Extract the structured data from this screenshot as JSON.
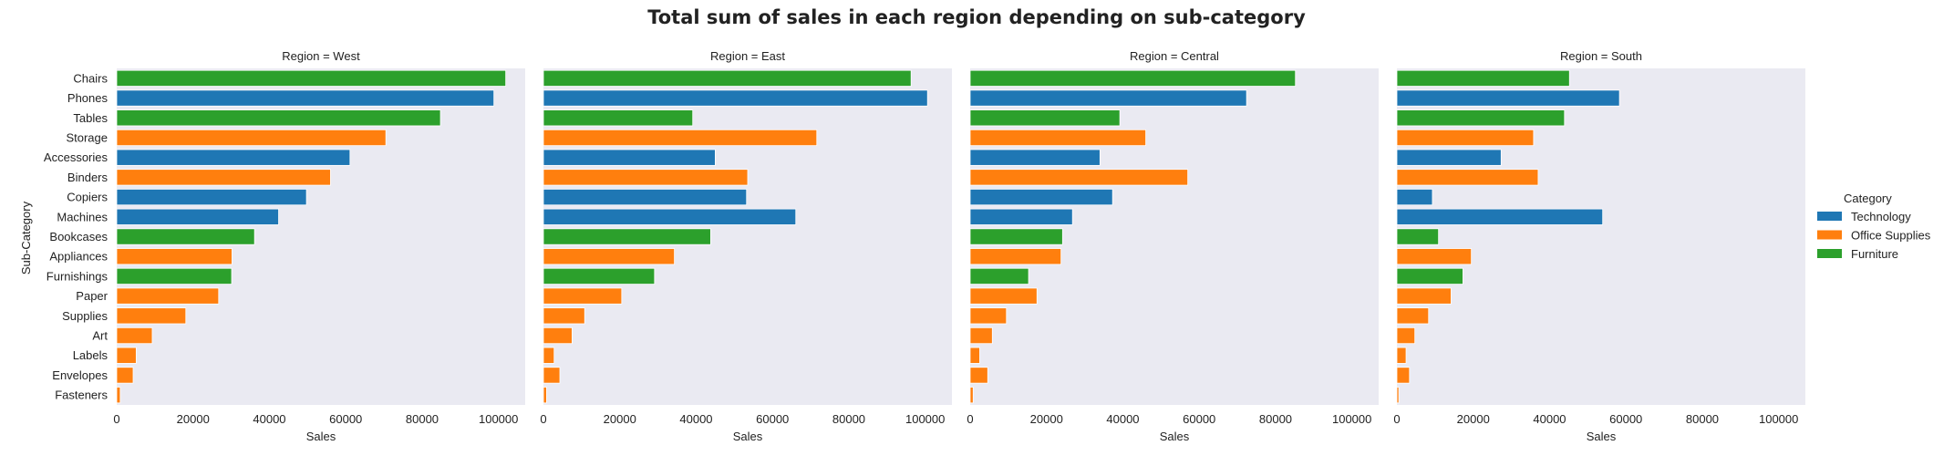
{
  "chart_data": {
    "type": "bar",
    "orientation": "horizontal",
    "title": "Total sum of sales in each region depending on sub-category",
    "xlabel": "Sales",
    "ylabel": "Sub-Category",
    "xlim": [
      0,
      107000
    ],
    "xticks": [
      "0",
      "20000",
      "40000",
      "60000",
      "80000",
      "100000"
    ],
    "xtick_values": [
      0,
      20000,
      40000,
      60000,
      80000,
      100000
    ],
    "grid": false,
    "legend_position": "right",
    "legend": {
      "title": "Category",
      "items": [
        {
          "label": "Technology",
          "color": "#1f77b4"
        },
        {
          "label": "Office Supplies",
          "color": "#ff7f0e"
        },
        {
          "label": "Furniture",
          "color": "#2ca02c"
        }
      ]
    },
    "colors": {
      "Technology": "#1f77b4",
      "Office Supplies": "#ff7f0e",
      "Furniture": "#2ca02c"
    },
    "categories": [
      "Chairs",
      "Phones",
      "Tables",
      "Storage",
      "Accessories",
      "Binders",
      "Copiers",
      "Machines",
      "Bookcases",
      "Appliances",
      "Furnishings",
      "Paper",
      "Supplies",
      "Art",
      "Labels",
      "Envelopes",
      "Fasteners"
    ],
    "category_group": [
      "Furniture",
      "Technology",
      "Furniture",
      "Office Supplies",
      "Technology",
      "Office Supplies",
      "Technology",
      "Technology",
      "Furniture",
      "Office Supplies",
      "Furniture",
      "Office Supplies",
      "Office Supplies",
      "Office Supplies",
      "Office Supplies",
      "Office Supplies",
      "Office Supplies"
    ],
    "panels": [
      {
        "title": "Region = West",
        "values": [
          101900,
          98800,
          84800,
          70500,
          61100,
          56000,
          49700,
          42400,
          36100,
          30200,
          30100,
          26700,
          18100,
          9300,
          5100,
          4300,
          920
        ]
      },
      {
        "title": "Region = East",
        "values": [
          96300,
          100600,
          39100,
          71600,
          45000,
          53500,
          53200,
          66100,
          43800,
          34300,
          29100,
          20500,
          10800,
          7500,
          2800,
          4300,
          820
        ]
      },
      {
        "title": "Region = Central",
        "values": [
          85200,
          72400,
          39200,
          46000,
          34000,
          57000,
          37300,
          26800,
          24200,
          23800,
          15300,
          17500,
          9500,
          5800,
          2500,
          4600,
          780
        ]
      },
      {
        "title": "Region = South",
        "values": [
          45200,
          58300,
          43900,
          35800,
          27300,
          37000,
          9300,
          53900,
          10900,
          19500,
          17300,
          14200,
          8300,
          4700,
          2400,
          3300,
          500
        ]
      }
    ]
  }
}
